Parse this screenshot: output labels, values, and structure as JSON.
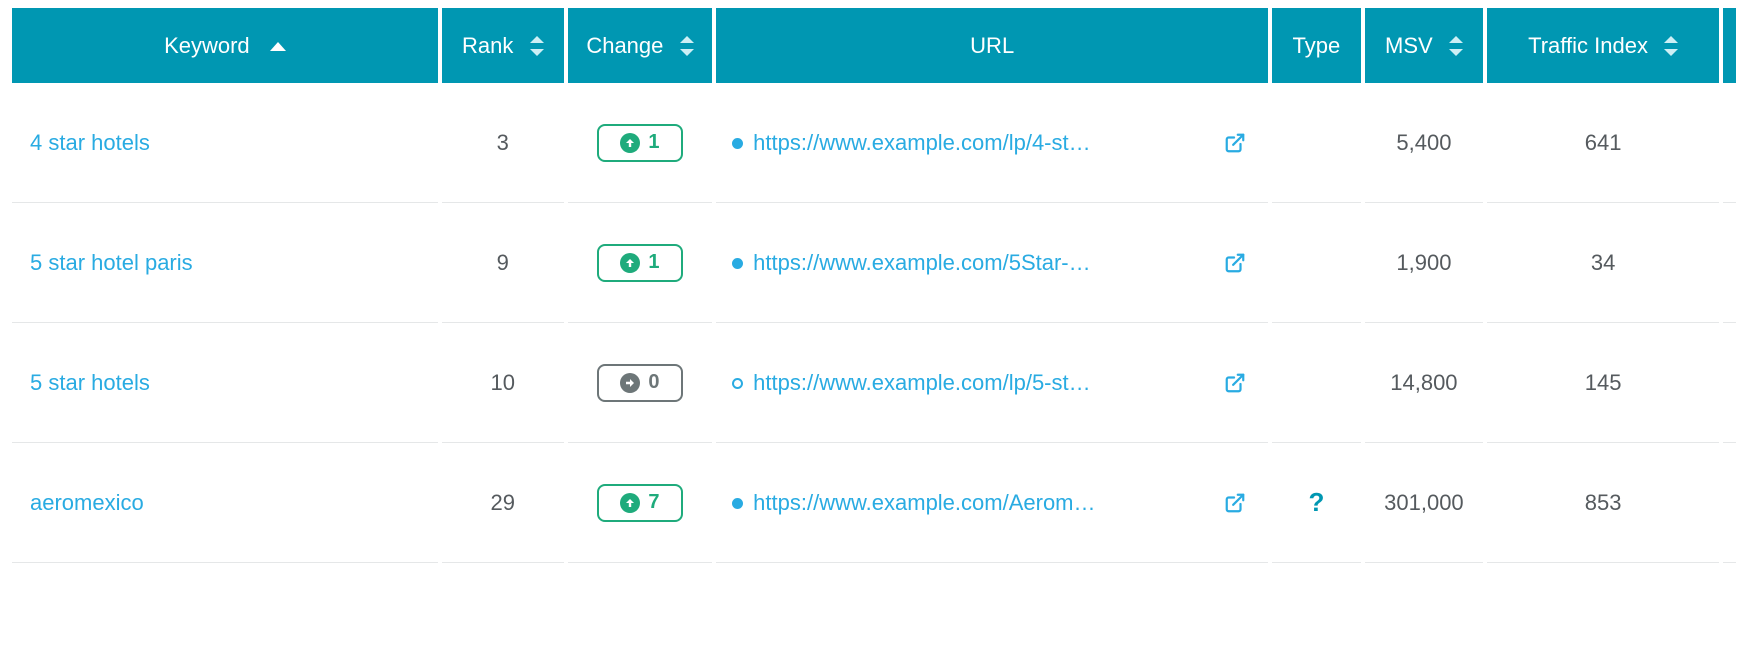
{
  "colors": {
    "header_bg": "#0097b2",
    "header_text": "#ffffff",
    "link": "#29abe2",
    "body_text": "#555a5e",
    "row_border": "#e5e7e8",
    "change_up": "#1fab7c",
    "change_flat": "#6d7678"
  },
  "columns": {
    "keyword": {
      "label": "Keyword",
      "sort": "asc_active",
      "align": "left"
    },
    "rank": {
      "label": "Rank",
      "sort": "both",
      "align": "center"
    },
    "change": {
      "label": "Change",
      "sort": "both",
      "align": "center"
    },
    "url": {
      "label": "URL",
      "sort": "none",
      "align": "center"
    },
    "type": {
      "label": "Type",
      "sort": "none",
      "align": "center"
    },
    "msv": {
      "label": "MSV",
      "sort": "both",
      "align": "center"
    },
    "traffic": {
      "label": "Traffic Index",
      "sort": "both",
      "align": "center"
    }
  },
  "rows": [
    {
      "keyword": "4 star hotels",
      "rank": "3",
      "change": {
        "value": "1",
        "direction": "up"
      },
      "url": {
        "text": "https://www.example.com/lp/4-st…",
        "bullet": "filled"
      },
      "type": "",
      "msv": "5,400",
      "traffic": "641"
    },
    {
      "keyword": "5 star hotel paris",
      "rank": "9",
      "change": {
        "value": "1",
        "direction": "up"
      },
      "url": {
        "text": "https://www.example.com/5Star-…",
        "bullet": "filled"
      },
      "type": "",
      "msv": "1,900",
      "traffic": "34"
    },
    {
      "keyword": "5 star hotels",
      "rank": "10",
      "change": {
        "value": "0",
        "direction": "flat"
      },
      "url": {
        "text": "https://www.example.com/lp/5-st…",
        "bullet": "hollow"
      },
      "type": "",
      "msv": "14,800",
      "traffic": "145"
    },
    {
      "keyword": "aeromexico",
      "rank": "29",
      "change": {
        "value": "7",
        "direction": "up"
      },
      "url": {
        "text": "https://www.example.com/Aerom…",
        "bullet": "filled"
      },
      "type": "?",
      "msv": "301,000",
      "traffic": "853"
    }
  ]
}
